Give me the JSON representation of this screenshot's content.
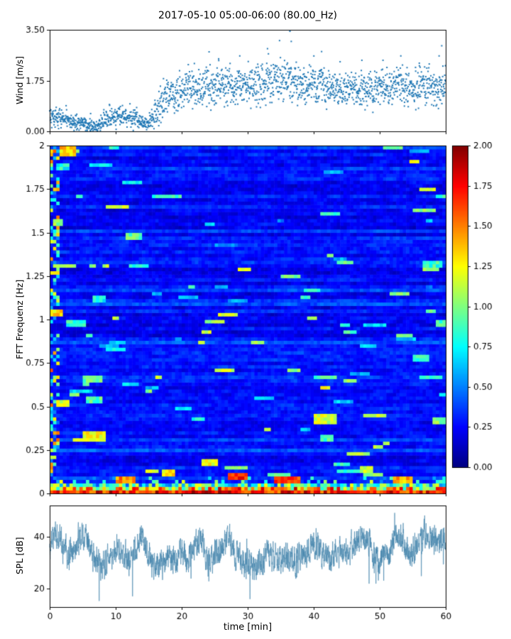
{
  "title": "2017-05-10 05:00-06:00 (80.00_Hz)",
  "chart_data": [
    {
      "type": "scatter",
      "name": "wind-speed",
      "ylabel": "Wind [m/s]",
      "ylim": [
        0.0,
        3.5
      ],
      "ytick_values": [
        0.0,
        1.75,
        3.5
      ],
      "yticks": [
        "0.00",
        "1.75",
        "3.50"
      ],
      "xlim": [
        0,
        60
      ],
      "xtick_values": [
        0,
        10,
        20,
        30,
        40,
        50,
        60
      ],
      "marker_color": "#1f77b4",
      "points_per_minute": 32,
      "mean_by_minute": [
        0.55,
        0.5,
        0.45,
        0.35,
        0.3,
        0.28,
        0.22,
        0.2,
        0.35,
        0.5,
        0.5,
        0.55,
        0.5,
        0.45,
        0.3,
        0.25,
        0.6,
        1.0,
        1.25,
        1.3,
        1.35,
        1.5,
        1.45,
        1.5,
        1.55,
        1.5,
        1.6,
        1.55,
        1.5,
        1.6,
        1.65,
        1.7,
        1.6,
        1.75,
        1.8,
        1.75,
        1.85,
        1.7,
        1.6,
        1.55,
        1.6,
        1.7,
        1.55,
        1.5,
        1.45,
        1.4,
        1.45,
        1.4,
        1.45,
        1.4,
        1.5,
        1.55,
        1.6,
        1.65,
        1.5,
        1.45,
        1.5,
        1.55,
        1.5,
        1.6,
        1.55
      ],
      "spread_by_minute": [
        0.2,
        0.18,
        0.18,
        0.15,
        0.15,
        0.12,
        0.12,
        0.12,
        0.18,
        0.18,
        0.18,
        0.18,
        0.2,
        0.22,
        0.15,
        0.15,
        0.3,
        0.35,
        0.35,
        0.35,
        0.35,
        0.35,
        0.35,
        0.35,
        0.35,
        0.35,
        0.35,
        0.35,
        0.35,
        0.35,
        0.38,
        0.38,
        0.38,
        0.4,
        0.4,
        0.4,
        0.42,
        0.38,
        0.35,
        0.35,
        0.35,
        0.38,
        0.35,
        0.35,
        0.35,
        0.33,
        0.33,
        0.33,
        0.33,
        0.33,
        0.35,
        0.35,
        0.35,
        0.38,
        0.35,
        0.33,
        0.35,
        0.35,
        0.35,
        0.4,
        0.38
      ],
      "peak_points": [
        [
          36.4,
          3.45
        ],
        [
          36.6,
          3.1
        ],
        [
          33.0,
          2.85
        ],
        [
          41.2,
          2.75
        ],
        [
          59.4,
          2.95
        ],
        [
          59.0,
          2.6
        ],
        [
          53.2,
          2.6
        ],
        [
          25.6,
          2.5
        ],
        [
          47.3,
          2.45
        ],
        [
          21.0,
          2.3
        ],
        [
          28.8,
          2.6
        ],
        [
          44.0,
          2.4
        ],
        [
          50.5,
          2.45
        ],
        [
          56.0,
          2.35
        ]
      ]
    },
    {
      "type": "heatmap",
      "name": "fft-spectrogram",
      "ylabel": "FFT Frequenz [Hz]",
      "ylim": [
        0,
        2
      ],
      "ytick_values": [
        0,
        0.25,
        0.5,
        0.75,
        1,
        1.25,
        1.5,
        1.75,
        2
      ],
      "yticks": [
        "0",
        "0.25",
        "0.5",
        "0.75",
        "1",
        "1.25",
        "1.5",
        "1.75",
        "2"
      ],
      "xlim": [
        0,
        60
      ],
      "xtick_values": [
        0,
        10,
        20,
        30,
        40,
        50,
        60
      ],
      "grid": {
        "cols": 120,
        "rows": 100
      },
      "base_level": 0.22,
      "colorbar": {
        "colormap": "jet",
        "vmin": 0.0,
        "vmax": 2.0,
        "tick_values": [
          0.0,
          0.25,
          0.5,
          0.75,
          1.0,
          1.25,
          1.5,
          1.75,
          2.0
        ],
        "tick_labels": [
          "0.00",
          "0.25",
          "0.50",
          "0.75",
          "1.00",
          "1.25",
          "1.50",
          "1.75",
          "2.00"
        ]
      },
      "bright_patches": [
        {
          "t": 1.5,
          "f": 1.93,
          "dt": 2.5,
          "df": 0.06,
          "v": 1.35
        },
        {
          "t": 1.0,
          "f": 1.85,
          "dt": 2.0,
          "df": 0.03,
          "v": 0.8
        },
        {
          "t": 9.0,
          "f": 1.97,
          "dt": 1.5,
          "df": 0.03,
          "v": 0.9
        },
        {
          "t": 11.5,
          "f": 1.45,
          "dt": 2.5,
          "df": 0.03,
          "v": 0.95
        },
        {
          "t": 0.5,
          "f": 1.53,
          "dt": 1.5,
          "df": 0.03,
          "v": 1.0
        },
        {
          "t": 0.2,
          "f": 1.02,
          "dt": 2.0,
          "df": 0.04,
          "v": 1.3
        },
        {
          "t": 2.5,
          "f": 0.95,
          "dt": 3.0,
          "df": 0.03,
          "v": 0.85
        },
        {
          "t": 6.5,
          "f": 1.1,
          "dt": 2.0,
          "df": 0.03,
          "v": 0.8
        },
        {
          "t": 5.0,
          "f": 0.63,
          "dt": 3.0,
          "df": 0.04,
          "v": 0.95
        },
        {
          "t": 1.0,
          "f": 0.5,
          "dt": 2.0,
          "df": 0.03,
          "v": 1.2
        },
        {
          "t": 5.5,
          "f": 0.52,
          "dt": 2.5,
          "df": 0.03,
          "v": 0.9
        },
        {
          "t": 5.0,
          "f": 0.3,
          "dt": 3.5,
          "df": 0.05,
          "v": 1.25
        },
        {
          "t": 40.0,
          "f": 0.4,
          "dt": 3.5,
          "df": 0.06,
          "v": 1.15
        },
        {
          "t": 41.0,
          "f": 0.3,
          "dt": 2.0,
          "df": 0.04,
          "v": 0.9
        },
        {
          "t": 27.0,
          "f": 0.08,
          "dt": 3.0,
          "df": 0.04,
          "v": 1.7
        },
        {
          "t": 17.0,
          "f": 0.1,
          "dt": 2.0,
          "df": 0.04,
          "v": 1.3
        },
        {
          "t": 56.5,
          "f": 1.3,
          "dt": 3.0,
          "df": 0.03,
          "v": 0.85
        },
        {
          "t": 55.0,
          "f": 0.75,
          "dt": 2.5,
          "df": 0.03,
          "v": 0.8
        },
        {
          "t": 58.5,
          "f": 0.95,
          "dt": 1.5,
          "df": 0.03,
          "v": 0.9
        },
        {
          "t": 23.0,
          "f": 0.15,
          "dt": 2.5,
          "df": 0.04,
          "v": 1.2
        },
        {
          "t": 47.0,
          "f": 0.12,
          "dt": 2.0,
          "df": 0.04,
          "v": 1.1
        },
        {
          "t": 34.0,
          "f": 0.05,
          "dt": 4.0,
          "df": 0.03,
          "v": 1.6
        },
        {
          "t": 10.0,
          "f": 0.05,
          "dt": 3.0,
          "df": 0.03,
          "v": 1.5
        },
        {
          "t": 52.0,
          "f": 0.05,
          "dt": 3.0,
          "df": 0.03,
          "v": 1.4
        },
        {
          "t": 58.0,
          "f": 0.4,
          "dt": 2.0,
          "df": 0.04,
          "v": 1.0
        }
      ]
    },
    {
      "type": "line",
      "name": "spl",
      "ylabel": "SPL [dB]",
      "xlabel": "time [min]",
      "ylim": [
        13,
        52
      ],
      "ytick_values": [
        20,
        40
      ],
      "yticks": [
        "20",
        "40"
      ],
      "xlim": [
        0,
        60
      ],
      "xtick_values": [
        0,
        10,
        20,
        30,
        40,
        50,
        60
      ],
      "xticks": [
        "0",
        "10",
        "20",
        "30",
        "40",
        "50",
        "60"
      ],
      "line_color": "#4787ad",
      "noise_db": 4.5,
      "mean_by_minute": [
        38,
        40,
        36,
        33,
        35,
        42,
        36,
        30,
        28,
        33,
        35,
        33,
        30,
        36,
        40,
        33,
        27,
        30,
        32,
        31,
        33,
        32,
        35,
        40,
        30,
        33,
        36,
        40,
        34,
        30,
        31,
        28,
        30,
        33,
        32,
        31,
        33,
        31,
        33,
        35,
        38,
        34,
        32,
        33,
        35,
        33,
        36,
        38,
        40,
        33,
        30,
        33,
        38,
        42,
        36,
        34,
        38,
        42,
        40,
        38,
        40
      ]
    }
  ]
}
